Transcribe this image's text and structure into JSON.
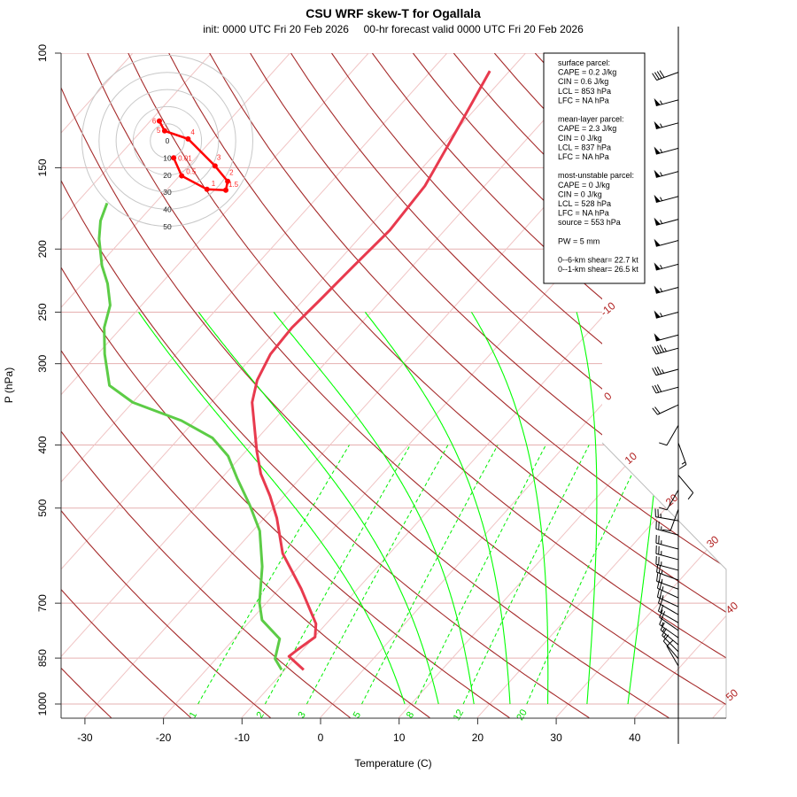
{
  "chart_data": {
    "type": "skew-t",
    "title": "CSU WRF skew-T for Ogallala",
    "subtitle": "init: 0000 UTC Fri 20 Feb 2026     00-hr forecast valid 0000 UTC Fri 20 Feb 2026",
    "xlabel": "Temperature (C)",
    "ylabel": "P (hPa)",
    "xlim": [
      -33,
      52
    ],
    "ylim": [
      1050,
      100
    ],
    "x_ticks": [
      -30,
      -20,
      -10,
      0,
      10,
      20,
      30,
      40
    ],
    "pressure_ticks": [
      100,
      150,
      200,
      250,
      300,
      400,
      500,
      700,
      850,
      1000
    ],
    "isotherm_labels": [
      -10,
      0,
      10,
      20,
      30,
      40,
      50
    ],
    "dry_adiabats_theta_c": [
      -30,
      -20,
      -10,
      0,
      10,
      20,
      30,
      40,
      50,
      60,
      70,
      80,
      90,
      100,
      110,
      120,
      130,
      140,
      150,
      160,
      170,
      180,
      190,
      200
    ],
    "moist_adiabats_t1000_c": [
      9.2,
      13.5,
      18,
      22.6,
      27.4,
      32.4,
      37.6
    ],
    "mixing_ratio_lines_gkg": [
      1,
      2,
      3,
      5,
      8,
      12,
      20
    ],
    "temperature": [
      [
        886,
        -7.6
      ],
      [
        845,
        -11
      ],
      [
        826,
        -10.7
      ],
      [
        789,
        -9.9
      ],
      [
        753,
        -11.3
      ],
      [
        665,
        -17.2
      ],
      [
        587,
        -23.6
      ],
      [
        518,
        -28.4
      ],
      [
        479,
        -31.8
      ],
      [
        443,
        -35.5
      ],
      [
        409,
        -38.6
      ],
      [
        344,
        -44.8
      ],
      [
        318,
        -46.7
      ],
      [
        290,
        -48
      ],
      [
        264,
        -48.3
      ],
      [
        240,
        -47.9
      ],
      [
        212,
        -47.5
      ],
      [
        187,
        -47
      ],
      [
        160,
        -47.6
      ],
      [
        128.5,
        -50.2
      ],
      [
        106.5,
        -52.5
      ]
    ],
    "dewpoint": [
      [
        886,
        -10.4
      ],
      [
        852,
        -12.5
      ],
      [
        794,
        -14.2
      ],
      [
        743,
        -18.6
      ],
      [
        699,
        -20.9
      ],
      [
        615,
        -24.7
      ],
      [
        542,
        -29.1
      ],
      [
        495,
        -33.3
      ],
      [
        450,
        -38
      ],
      [
        416,
        -41.7
      ],
      [
        390,
        -45.8
      ],
      [
        367,
        -51.7
      ],
      [
        344,
        -60
      ],
      [
        324,
        -64.9
      ],
      [
        290,
        -69.1
      ],
      [
        264,
        -72.2
      ],
      [
        244,
        -74
      ],
      [
        226,
        -76.8
      ],
      [
        212,
        -79.6
      ],
      [
        193,
        -83
      ],
      [
        181,
        -84.9
      ],
      [
        170,
        -86.1
      ]
    ],
    "wind_barbs": [
      [
        107,
        250,
        40
      ],
      [
        118,
        255,
        55
      ],
      [
        128,
        255,
        55
      ],
      [
        140,
        255,
        55
      ],
      [
        152,
        255,
        55
      ],
      [
        166,
        255,
        55
      ],
      [
        180,
        255,
        55
      ],
      [
        194,
        255,
        50
      ],
      [
        211,
        255,
        55
      ],
      [
        229,
        255,
        55
      ],
      [
        250,
        255,
        55
      ],
      [
        271,
        255,
        50
      ],
      [
        284,
        255,
        45
      ],
      [
        306,
        255,
        35
      ],
      [
        326,
        255,
        30
      ],
      [
        347,
        245,
        20
      ],
      [
        373,
        210,
        10
      ],
      [
        397,
        160,
        15
      ],
      [
        445,
        140,
        10
      ],
      [
        469,
        210,
        10
      ],
      [
        502,
        200,
        10
      ],
      [
        523,
        280,
        25
      ],
      [
        550,
        285,
        25
      ],
      [
        578,
        285,
        25
      ],
      [
        600,
        285,
        25
      ],
      [
        623,
        285,
        25
      ],
      [
        645,
        290,
        25
      ],
      [
        666,
        290,
        25
      ],
      [
        687,
        295,
        25
      ],
      [
        709,
        295,
        25
      ],
      [
        729,
        300,
        20
      ],
      [
        750,
        300,
        20
      ],
      [
        771,
        305,
        20
      ],
      [
        791,
        305,
        15
      ],
      [
        811,
        310,
        15
      ],
      [
        831,
        315,
        15
      ],
      [
        852,
        320,
        10
      ],
      [
        874,
        330,
        10
      ]
    ],
    "hodograph": {
      "ring_labels": [
        "0",
        "10",
        "20",
        "30",
        "40",
        "50"
      ],
      "points": [
        {
          "label": "0.01",
          "u": 3.7,
          "v": -10
        },
        {
          "label": "0.5",
          "u": 8.4,
          "v": -20.5
        },
        {
          "label": "1",
          "u": 23.2,
          "v": -28.4
        },
        {
          "label": "1.5",
          "u": 34.2,
          "v": -28.9
        },
        {
          "label": "2",
          "u": 35.3,
          "v": -23.7
        },
        {
          "label": "3",
          "u": 27.9,
          "v": -14.7
        },
        {
          "label": "4",
          "u": 12.1,
          "v": 1.1
        },
        {
          "label": "5",
          "u": -1.6,
          "v": 5.8
        },
        {
          "label": "6",
          "u": -4.7,
          "v": 11.6
        }
      ]
    },
    "colors": {
      "temperature": "#e83a4e",
      "dewpoint": "#5ccc46",
      "dry_adiabat": "#a52a2a",
      "isotherm": "#f0c4c4",
      "isobar": "#e6b0b0",
      "moist_adiabat": "#00ff00",
      "mixing_ratio": "#00ee00",
      "hodograph": "#ff0000"
    }
  },
  "info_box": {
    "lines": [
      "surface parcel:",
      "CAPE = 0.2 J/kg",
      "CIN = 0.6 J/kg",
      "LCL = 853 hPa",
      "LFC = NA hPa",
      "",
      "mean-layer parcel:",
      "CAPE = 2.3 J/kg",
      "CIN = 0 J/kg",
      "LCL = 837 hPa",
      "LFC = NA hPa",
      "",
      "most-unstable parcel:",
      "CAPE = 0 J/kg",
      "CIN = 0 J/kg",
      "LCL = 528 hPa",
      "LFC = NA hPa",
      "source = 553 hPa",
      "",
      "PW =  5 mm",
      "",
      "0--6-km shear= 22.7 kt",
      "0--1-km shear= 26.5 kt"
    ]
  }
}
